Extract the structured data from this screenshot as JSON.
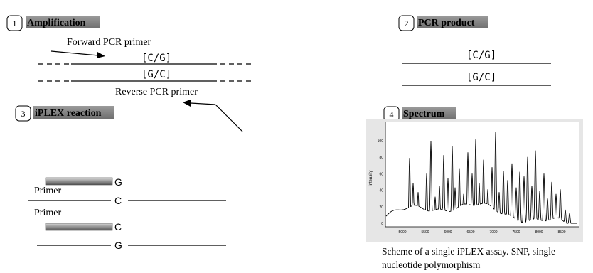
{
  "panels": {
    "amplification": {
      "number": "1",
      "title": "Amplification"
    },
    "pcr_product": {
      "number": "2",
      "title": "PCR product"
    },
    "iplex": {
      "number": "3",
      "title": "iPLEX reaction"
    },
    "spectrum": {
      "number": "4",
      "title": "Spectrum"
    }
  },
  "amplification": {
    "forward_primer_label": "Forward PCR primer",
    "reverse_primer_label": "Reverse PCR primer",
    "top_strand_allele": "[C/G]",
    "bottom_strand_allele": "[G/C]"
  },
  "pcr_product": {
    "top_strand_allele": "[C/G]",
    "bottom_strand_allele": "[G/C]"
  },
  "iplex": {
    "primer1_label": "Primer",
    "primer1_extension": "G",
    "template1_base": "C",
    "primer2_label": "Primer",
    "primer2_extension": "C",
    "template2_base": "G"
  },
  "spectrum": {
    "y_axis_label": "Intensity",
    "y_ticks": [
      "100",
      "80",
      "60",
      "40",
      "20",
      "0"
    ],
    "x_ticks": [
      "5000",
      "5500",
      "6000",
      "6500",
      "7000",
      "7500",
      "8000",
      "8500"
    ],
    "colors": {
      "trace": "#000000",
      "background": "#e6e6e6"
    }
  },
  "caption": "Scheme of a single iPLEX assay. SNP, single nucleotide polymorphism"
}
